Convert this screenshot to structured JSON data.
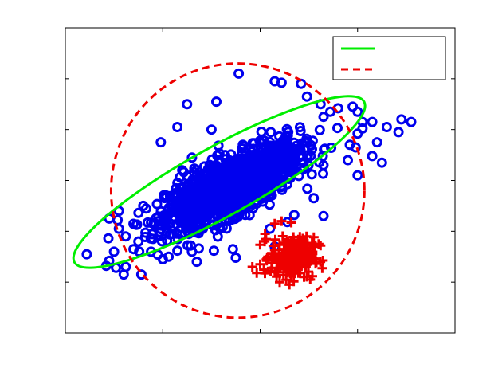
{
  "chart_data": {
    "type": "scatter",
    "title": "",
    "xlabel": "",
    "ylabel": "",
    "xlim": [
      0,
      4
    ],
    "ylim": [
      0,
      6
    ],
    "xticks": [
      1,
      2,
      3
    ],
    "yticks": [
      1,
      2,
      3,
      4,
      5
    ],
    "grid": false,
    "legend": {
      "placement": "top-right",
      "entries": [
        {
          "label": "",
          "color": "#00ee00",
          "style": "solid"
        },
        {
          "label": "",
          "color": "#ee0000",
          "style": "dashed"
        }
      ]
    },
    "series": [
      {
        "marker": "circle",
        "color": "#0000ee",
        "dense_cluster": {
          "cx": 1.72,
          "cy": 2.9,
          "sx": 0.34,
          "sy": 0.4,
          "rho": 0.72,
          "n": 1400
        },
        "points": [
          [
            0.22,
            1.55
          ],
          [
            0.42,
            1.32
          ],
          [
            0.45,
            1.42
          ],
          [
            0.52,
            1.28
          ],
          [
            0.6,
            1.15
          ],
          [
            0.62,
            1.3
          ],
          [
            0.78,
            1.15
          ],
          [
            0.5,
            1.6
          ],
          [
            0.55,
            2.05
          ],
          [
            0.88,
            1.6
          ],
          [
            1.0,
            1.45
          ],
          [
            1.06,
            1.5
          ],
          [
            1.15,
            1.62
          ],
          [
            1.35,
            1.4
          ],
          [
            1.3,
            1.6
          ],
          [
            1.72,
            1.65
          ],
          [
            1.75,
            1.48
          ],
          [
            1.78,
            5.1
          ],
          [
            2.15,
            4.95
          ],
          [
            2.22,
            4.92
          ],
          [
            2.42,
            4.9
          ],
          [
            2.48,
            4.65
          ],
          [
            2.62,
            4.5
          ],
          [
            2.72,
            4.35
          ],
          [
            2.65,
            4.25
          ],
          [
            2.8,
            4.42
          ],
          [
            2.95,
            4.45
          ],
          [
            3.0,
            4.35
          ],
          [
            3.05,
            4.15
          ],
          [
            3.0,
            3.92
          ],
          [
            2.92,
            3.7
          ],
          [
            3.15,
            4.15
          ],
          [
            3.2,
            3.75
          ],
          [
            2.9,
            3.4
          ],
          [
            2.65,
            3.3
          ],
          [
            3.0,
            3.1
          ],
          [
            3.3,
            4.05
          ],
          [
            3.42,
            3.95
          ],
          [
            3.05,
            4.02
          ],
          [
            3.45,
            4.2
          ],
          [
            3.55,
            4.15
          ],
          [
            2.98,
            3.65
          ],
          [
            3.15,
            3.48
          ],
          [
            3.25,
            3.35
          ],
          [
            2.65,
            2.3
          ],
          [
            2.55,
            2.65
          ],
          [
            2.35,
            2.32
          ],
          [
            2.28,
            2.18
          ],
          [
            2.1,
            2.05
          ],
          [
            2.15,
            1.7
          ],
          [
            0.98,
            3.75
          ],
          [
            1.15,
            4.05
          ],
          [
            1.2,
            3.2
          ],
          [
            1.3,
            3.45
          ],
          [
            1.25,
            4.5
          ],
          [
            1.5,
            4.0
          ],
          [
            1.55,
            4.55
          ],
          [
            0.55,
            2.4
          ],
          [
            0.45,
            2.25
          ],
          [
            0.62,
            1.9
          ],
          [
            0.75,
            1.8
          ],
          [
            0.9,
            1.85
          ],
          [
            0.7,
            1.65
          ],
          [
            1.1,
            1.95
          ],
          [
            0.8,
            2.5
          ]
        ]
      },
      {
        "marker": "plus",
        "color": "#ee0000",
        "dense_cluster": {
          "cx": 2.33,
          "cy": 1.48,
          "sx": 0.11,
          "sy": 0.2,
          "rho": 0.0,
          "n": 250
        },
        "points": [
          [
            1.92,
            1.3
          ],
          [
            2.0,
            1.35
          ],
          [
            2.15,
            2.15
          ],
          [
            2.22,
            2.2
          ],
          [
            2.32,
            2.17
          ],
          [
            2.6,
            1.75
          ],
          [
            2.62,
            1.72
          ],
          [
            2.3,
            0.95
          ],
          [
            2.2,
            1.0
          ],
          [
            2.45,
            1.1
          ],
          [
            2.08,
            1.5
          ],
          [
            2.05,
            1.95
          ]
        ]
      }
    ],
    "ellipses": [
      {
        "name": "",
        "color": "#00ee00",
        "style": "solid",
        "cx": 1.58,
        "cy": 2.97,
        "rx": 1.7,
        "ry": 0.68,
        "angle_deg": 29
      },
      {
        "name": "",
        "color": "#ee0000",
        "style": "dashed",
        "cx": 1.77,
        "cy": 2.8,
        "rx": 1.3,
        "ry": 2.5,
        "angle_deg": 0
      }
    ]
  }
}
